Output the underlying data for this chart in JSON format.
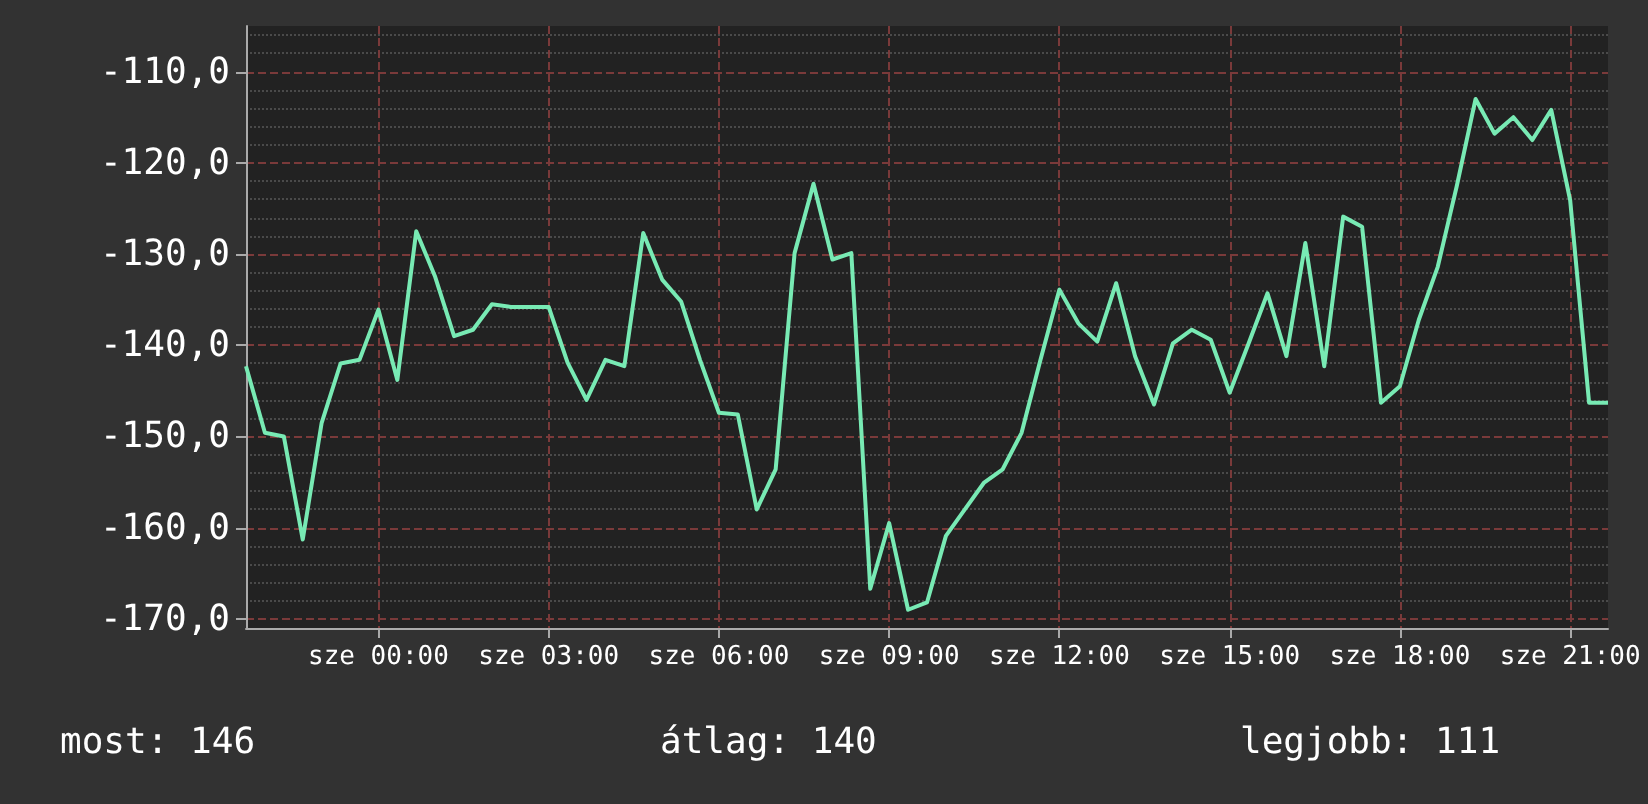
{
  "chart_data": {
    "type": "line",
    "categories": [
      null,
      null,
      null,
      null,
      null,
      null,
      null,
      "sze 00:00",
      null,
      null,
      null,
      null,
      null,
      null,
      null,
      null,
      "sze 03:00",
      null,
      null,
      null,
      null,
      null,
      null,
      null,
      null,
      "sze 06:00",
      null,
      null,
      null,
      null,
      null,
      null,
      null,
      null,
      "sze 09:00",
      null,
      null,
      null,
      null,
      null,
      null,
      null,
      null,
      "sze 12:00",
      null,
      null,
      null,
      null,
      null,
      null,
      null,
      null,
      "sze 15:00",
      null,
      null,
      null,
      null,
      null,
      null,
      null,
      null,
      "sze 18:00",
      null,
      null,
      null,
      null,
      null,
      null,
      null,
      null,
      "sze 21:00",
      null,
      null
    ],
    "ylim": [
      -171,
      -105
    ],
    "yticks": [
      {
        "value": -170,
        "label": "-170,0"
      },
      {
        "value": -160,
        "label": "-160,0"
      },
      {
        "value": -150,
        "label": "-150,0"
      },
      {
        "value": -140,
        "label": "-140,0"
      },
      {
        "value": -130,
        "label": "-130,0"
      },
      {
        "value": -120,
        "label": "-120,0"
      },
      {
        "value": -110,
        "label": "-110,0"
      }
    ],
    "grid": true,
    "marker": "none",
    "line_style": "solid",
    "annotations": [
      "most: 146",
      "átlag: 140",
      "legjobb: 111"
    ],
    "series": [
      {
        "color": "#78eab4",
        "values": [
          -142.3,
          -149.6,
          -150,
          -161.3,
          -148.5,
          -142,
          -141.6,
          -136.1,
          -143.8,
          -127.5,
          -132.5,
          -139,
          -138.3,
          -135.5,
          -135.8,
          -135.8,
          -135.8,
          -141.9,
          -146,
          -141.6,
          -142.3,
          -127.7,
          -132.8,
          -135.2,
          -141.6,
          -147.4,
          -147.6,
          -158,
          -153.6,
          -129.9,
          -122.3,
          -130.6,
          -129.9,
          -166.7,
          -159.5,
          -169,
          -168.2,
          -160.9,
          -158,
          -155.1,
          -153.6,
          -149.6,
          -141.6,
          -133.9,
          -137.6,
          -139.6,
          -133.2,
          -141.2,
          -146.5,
          -139.8,
          -138.3,
          -139.4,
          -145.2,
          -139.8,
          -134.3,
          -141.2,
          -128.8,
          -142.3,
          -125.9,
          -127,
          -146.3,
          -144.5,
          -137.2,
          -131.4,
          -122.6,
          -113,
          -116.8,
          -115,
          -117.5,
          -114.2,
          -124.1,
          -146.3,
          -146.3
        ]
      }
    ]
  }
}
